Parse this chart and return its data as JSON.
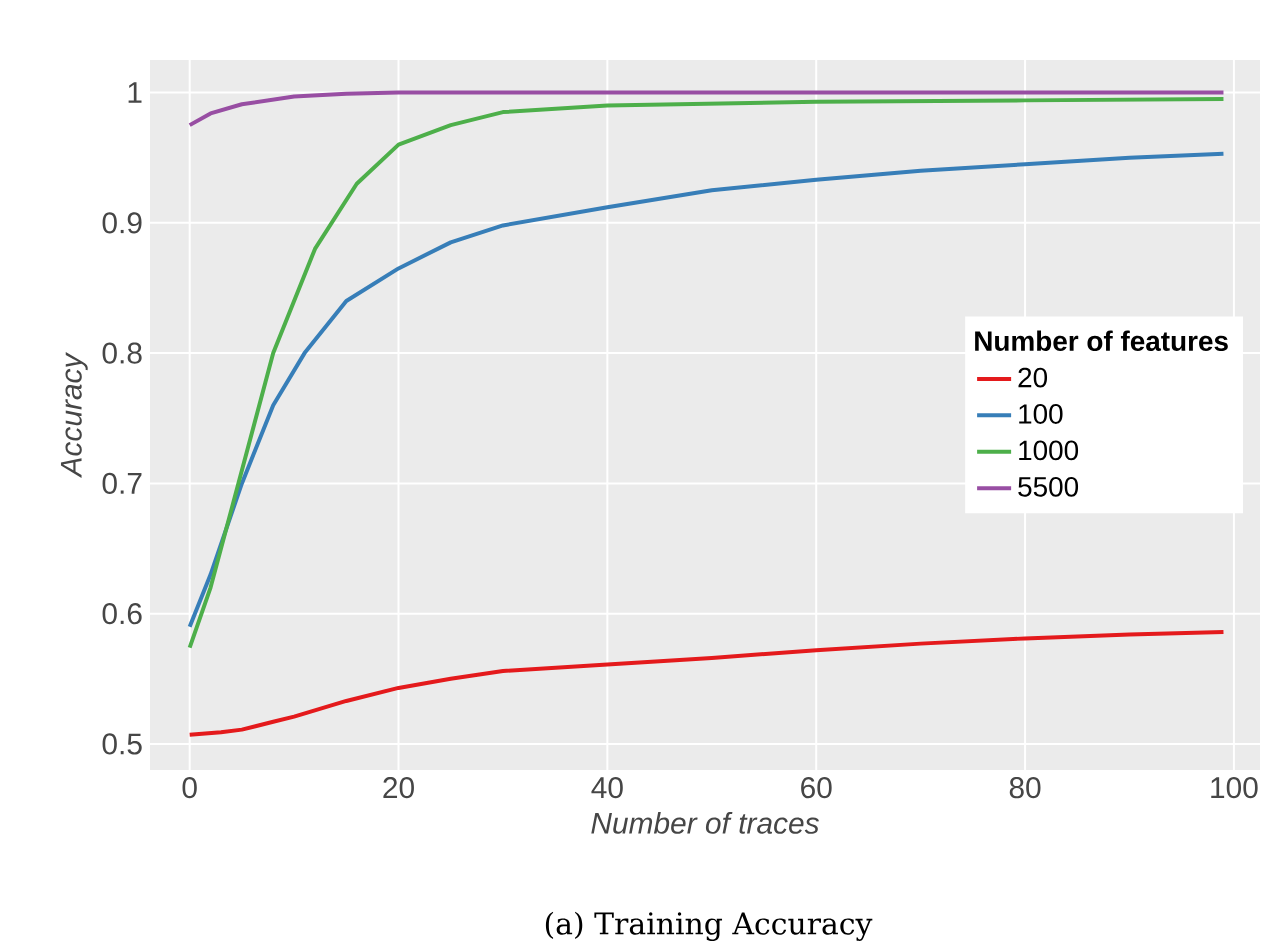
{
  "chart_data": {
    "type": "line",
    "xlabel": "Number of traces",
    "ylabel": "Accuracy",
    "legend_title": "Number of features",
    "annotations": [
      "(a) Training Accuracy"
    ],
    "xlim": [
      -3.8,
      102.5
    ],
    "ylim": [
      0.48,
      1.025
    ],
    "xticks": [
      0,
      20,
      40,
      60,
      80,
      100
    ],
    "yticks": [
      0.5,
      0.6,
      0.7,
      0.8,
      0.9,
      1
    ],
    "grid": true,
    "legend": "right",
    "marker": "none",
    "line_style": "solid",
    "series": [
      {
        "name": "20",
        "color": "#e41a1c",
        "x": [
          0,
          3,
          5,
          8,
          10,
          15,
          20,
          25,
          30,
          40,
          50,
          60,
          70,
          80,
          90,
          99
        ],
        "values": [
          0.507,
          0.509,
          0.511,
          0.517,
          0.521,
          0.533,
          0.543,
          0.55,
          0.556,
          0.561,
          0.566,
          0.572,
          0.577,
          0.581,
          0.584,
          0.586
        ]
      },
      {
        "name": "100",
        "color": "#377eb8",
        "x": [
          0,
          2,
          5,
          8,
          11,
          15,
          20,
          25,
          30,
          40,
          50,
          60,
          70,
          80,
          90,
          99
        ],
        "values": [
          0.59,
          0.63,
          0.7,
          0.76,
          0.8,
          0.84,
          0.865,
          0.885,
          0.898,
          0.912,
          0.925,
          0.933,
          0.94,
          0.945,
          0.95,
          0.953
        ]
      },
      {
        "name": "1000",
        "color": "#4daf4a",
        "x": [
          0,
          2,
          5,
          8,
          12,
          16,
          20,
          25,
          30,
          40,
          60,
          80,
          99
        ],
        "values": [
          0.574,
          0.62,
          0.71,
          0.8,
          0.88,
          0.93,
          0.96,
          0.975,
          0.985,
          0.99,
          0.993,
          0.994,
          0.995
        ]
      },
      {
        "name": "5500",
        "color": "#984ea3",
        "x": [
          0,
          2,
          5,
          10,
          15,
          20,
          40,
          60,
          80,
          99
        ],
        "values": [
          0.975,
          0.984,
          0.991,
          0.997,
          0.999,
          1.0,
          1.0,
          1.0,
          1.0,
          1.0
        ]
      }
    ]
  }
}
